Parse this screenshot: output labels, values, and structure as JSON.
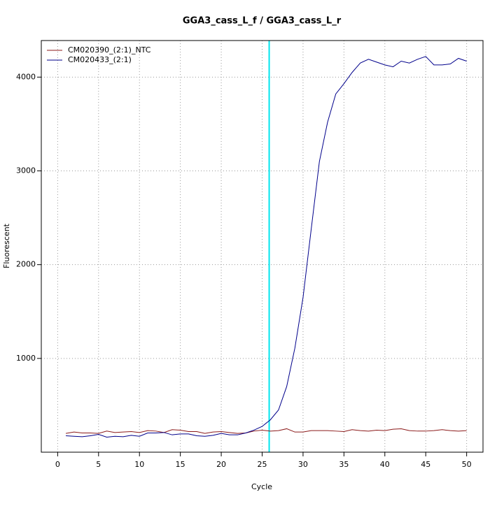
{
  "chart_data": {
    "type": "line",
    "title": "GGA3_cass_L_f / GGA3_cass_L_r",
    "x_label": "Cycle",
    "y_label": "Fluorescent",
    "x": [
      1,
      2,
      3,
      4,
      5,
      6,
      7,
      8,
      9,
      10,
      11,
      12,
      13,
      14,
      15,
      16,
      17,
      18,
      19,
      20,
      21,
      22,
      23,
      24,
      25,
      26,
      27,
      28,
      29,
      30,
      31,
      32,
      33,
      34,
      35,
      36,
      37,
      38,
      39,
      40,
      41,
      42,
      43,
      44,
      45,
      46,
      47,
      48,
      49,
      50
    ],
    "series": [
      {
        "name": "CM020390_(2:1)_NTC",
        "color": "#8b1a1a",
        "values": [
          200,
          215,
          205,
          205,
          200,
          225,
          210,
          215,
          220,
          210,
          230,
          225,
          210,
          240,
          235,
          220,
          220,
          200,
          215,
          220,
          210,
          200,
          205,
          225,
          235,
          225,
          230,
          250,
          215,
          215,
          230,
          230,
          230,
          225,
          220,
          240,
          230,
          225,
          235,
          230,
          245,
          250,
          230,
          225,
          225,
          230,
          240,
          230,
          225,
          230
        ]
      },
      {
        "name": "CM020433_(2:1)",
        "color": "#00008b",
        "values": [
          175,
          170,
          165,
          175,
          190,
          160,
          170,
          165,
          180,
          170,
          205,
          205,
          210,
          185,
          195,
          195,
          175,
          170,
          180,
          200,
          185,
          185,
          205,
          235,
          275,
          345,
          450,
          700,
          1110,
          1650,
          2380,
          3100,
          3520,
          3820,
          3930,
          4050,
          4150,
          4190,
          4160,
          4130,
          4110,
          4170,
          4150,
          4190,
          4220,
          4130,
          4130,
          4140,
          4200,
          4170
        ]
      }
    ],
    "threshold_cycle": 25.86,
    "threshold_color": "#00e5ee",
    "xlim": [
      -2,
      52
    ],
    "xticks": [
      0,
      5,
      10,
      15,
      20,
      25,
      30,
      35,
      40,
      45,
      50
    ],
    "ylim": [
      0,
      4390
    ],
    "yticks": [
      1000,
      2000,
      3000,
      4000
    ],
    "grid": true,
    "legend": "top-left"
  }
}
